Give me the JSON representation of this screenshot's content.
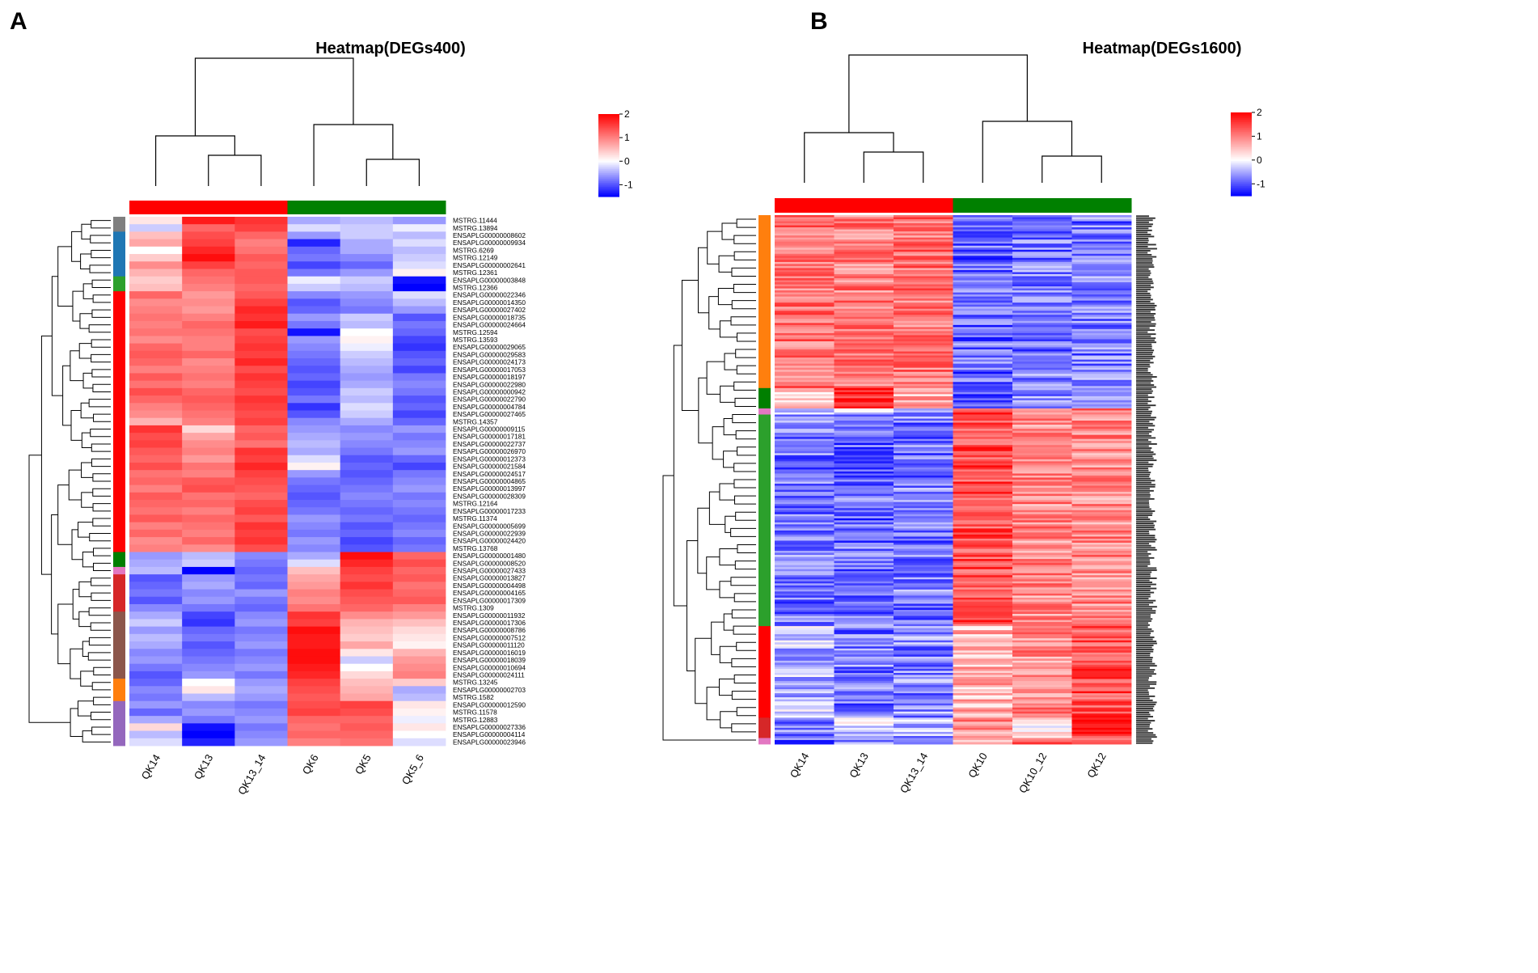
{
  "colors": {
    "high": "#ff0000",
    "mid": "#ffffff",
    "low": "#0000ff",
    "group_red": "#ff0000",
    "group_green": "#008000",
    "cluster_gray": "#7f7f7f",
    "cluster_blue": "#1f77b4",
    "cluster_green": "#2ca02c",
    "cluster_red": "#ff0000",
    "cluster_darkred": "#d62728",
    "cluster_pink": "#e377c2",
    "cluster_brown": "#8c564b",
    "cluster_orange": "#ff7f0e",
    "cluster_purple": "#9467bd",
    "cluster_darkgreen": "#007f00"
  },
  "chart_data": [
    {
      "type": "heatmap",
      "panel_label": "A",
      "title": "Heatmap(DEGs400)",
      "columns": [
        "QK14",
        "QK13",
        "QK13_14",
        "QK6",
        "QK5",
        "QK5_6"
      ],
      "column_groups": [
        "red",
        "red",
        "red",
        "green",
        "green",
        "green"
      ],
      "colorbar": {
        "ticks": [
          2,
          1,
          0,
          -1
        ],
        "range": [
          -1.5,
          2
        ]
      },
      "rows": [
        "MSTRG.11444",
        "MSTRG.13894",
        "ENSAPLG00000008602",
        "ENSAPLG00000009934",
        "MSTRG.6269",
        "MSTRG.12149",
        "ENSAPLG00000002641",
        "MSTRG.12361",
        "ENSAPLG00000003848",
        "MSTRG.12366",
        "ENSAPLG00000022346",
        "ENSAPLG00000014350",
        "ENSAPLG00000027402",
        "ENSAPLG00000018735",
        "ENSAPLG00000024664",
        "MSTRG.12594",
        "MSTRG.13593",
        "ENSAPLG00000029065",
        "ENSAPLG00000029583",
        "ENSAPLG00000024173",
        "ENSAPLG00000017053",
        "ENSAPLG00000018197",
        "ENSAPLG00000022980",
        "ENSAPLG00000000942",
        "ENSAPLG00000022790",
        "ENSAPLG00000004784",
        "ENSAPLG00000027465",
        "MSTRG.14357",
        "ENSAPLG00000009115",
        "ENSAPLG00000017181",
        "ENSAPLG00000022737",
        "ENSAPLG00000026970",
        "ENSAPLG00000012373",
        "ENSAPLG00000021584",
        "ENSAPLG00000024517",
        "ENSAPLG00000004865",
        "ENSAPLG00000013997",
        "ENSAPLG00000028309",
        "MSTRG.12164",
        "ENSAPLG00000017233",
        "MSTRG.11374",
        "ENSAPLG00000005699",
        "ENSAPLG00000022939",
        "ENSAPLG00000024420",
        "MSTRG.13768",
        "ENSAPLG00000001480",
        "ENSAPLG00000008520",
        "ENSAPLG00000027433",
        "ENSAPLG00000013827",
        "ENSAPLG00000004498",
        "ENSAPLG00000004165",
        "ENSAPLG00000017309",
        "MSTRG.1309",
        "ENSAPLG00000011932",
        "ENSAPLG00000017306",
        "ENSAPLG00000008786",
        "ENSAPLG00000007512",
        "ENSAPLG00000011120",
        "ENSAPLG00000016019",
        "ENSAPLG00000018039",
        "ENSAPLG00000010694",
        "ENSAPLG00000024111",
        "MSTRG.13245",
        "ENSAPLG00000002703",
        "MSTRG.1582",
        "ENSAPLG00000012590",
        "MSTRG.11578",
        "MSTRG.12883",
        "ENSAPLG00000027336",
        "ENSAPLG00000004114",
        "ENSAPLG00000023946"
      ],
      "row_cluster_segments": [
        {
          "color": "cluster_gray",
          "rows": 2
        },
        {
          "color": "cluster_blue",
          "rows": 6
        },
        {
          "color": "cluster_green",
          "rows": 2
        },
        {
          "color": "cluster_red",
          "rows": 35
        },
        {
          "color": "cluster_darkgreen",
          "rows": 2
        },
        {
          "color": "cluster_pink",
          "rows": 1
        },
        {
          "color": "cluster_darkred",
          "rows": 5
        },
        {
          "color": "cluster_brown",
          "rows": 9
        },
        {
          "color": "cluster_orange",
          "rows": 3
        },
        {
          "color": "cluster_purple",
          "rows": 6
        }
      ],
      "values": [
        [
          0.2,
          1.8,
          1.6,
          -0.5,
          -0.4,
          -0.6
        ],
        [
          -0.3,
          1.2,
          1.5,
          -0.2,
          -0.3,
          -0.1
        ],
        [
          0.5,
          1.4,
          1.2,
          -0.6,
          -0.3,
          -0.4
        ],
        [
          0.7,
          1.5,
          1.0,
          -1.3,
          -0.5,
          -0.2
        ],
        [
          0.0,
          1.7,
          1.1,
          -0.9,
          -0.5,
          -0.4
        ],
        [
          0.4,
          1.9,
          1.3,
          -0.8,
          -0.7,
          -0.3
        ],
        [
          0.9,
          1.5,
          1.2,
          -1.1,
          -0.9,
          -0.2
        ],
        [
          0.6,
          1.2,
          1.3,
          -0.8,
          -0.6,
          0.1
        ],
        [
          0.4,
          1.1,
          1.3,
          -0.1,
          -0.3,
          -1.4
        ],
        [
          0.5,
          1.0,
          1.2,
          -0.3,
          -0.4,
          -1.5
        ],
        [
          1.2,
          0.8,
          1.3,
          -0.7,
          -0.6,
          -0.2
        ],
        [
          0.9,
          0.9,
          1.5,
          -1.0,
          -0.7,
          -0.4
        ],
        [
          1.0,
          0.8,
          1.7,
          -0.9,
          -0.8,
          -0.6
        ],
        [
          1.1,
          1.0,
          1.6,
          -0.6,
          -0.3,
          -1.0
        ],
        [
          1.0,
          1.2,
          1.8,
          -0.8,
          -0.4,
          -0.8
        ],
        [
          1.1,
          1.1,
          1.4,
          -1.4,
          0.0,
          -0.9
        ],
        [
          0.9,
          1.0,
          1.5,
          -0.6,
          0.1,
          -1.1
        ],
        [
          1.2,
          1.0,
          1.6,
          -0.7,
          -0.1,
          -1.2
        ],
        [
          1.3,
          1.2,
          1.5,
          -0.8,
          -0.3,
          -1.0
        ],
        [
          1.2,
          0.9,
          1.7,
          -0.9,
          -0.4,
          -0.9
        ],
        [
          1.0,
          1.0,
          1.4,
          -1.0,
          -0.5,
          -1.1
        ],
        [
          1.3,
          1.1,
          1.6,
          -0.9,
          -0.6,
          -0.8
        ],
        [
          1.1,
          1.0,
          1.5,
          -1.1,
          -0.5,
          -0.7
        ],
        [
          1.4,
          1.2,
          1.4,
          -1.0,
          -0.3,
          -0.8
        ],
        [
          1.2,
          1.3,
          1.6,
          -0.8,
          -0.4,
          -1.0
        ],
        [
          1.0,
          1.2,
          1.5,
          -1.2,
          -0.2,
          -0.9
        ],
        [
          0.9,
          1.1,
          1.4,
          -1.0,
          -0.3,
          -1.1
        ],
        [
          0.6,
          1.0,
          1.5,
          -0.7,
          -0.5,
          -0.9
        ],
        [
          1.6,
          0.3,
          1.2,
          -0.6,
          -0.7,
          -0.6
        ],
        [
          1.4,
          0.7,
          1.3,
          -0.5,
          -0.6,
          -0.8
        ],
        [
          1.5,
          0.9,
          1.1,
          -0.4,
          -0.7,
          -0.7
        ],
        [
          1.3,
          1.0,
          1.6,
          -0.5,
          -0.8,
          -0.6
        ],
        [
          1.2,
          0.8,
          1.5,
          -0.2,
          -1.0,
          -0.9
        ],
        [
          1.4,
          1.1,
          1.7,
          0.1,
          -0.9,
          -1.1
        ],
        [
          1.1,
          1.0,
          1.5,
          -0.6,
          -1.0,
          -0.8
        ],
        [
          1.2,
          1.3,
          1.4,
          -0.8,
          -0.9,
          -0.7
        ],
        [
          1.0,
          1.4,
          1.3,
          -0.9,
          -0.8,
          -0.6
        ],
        [
          1.3,
          1.1,
          1.2,
          -1.0,
          -0.7,
          -0.8
        ],
        [
          1.2,
          1.2,
          1.4,
          -0.9,
          -0.8,
          -0.7
        ],
        [
          1.1,
          1.0,
          1.5,
          -0.8,
          -0.9,
          -0.8
        ],
        [
          1.3,
          1.2,
          1.3,
          -0.6,
          -0.8,
          -0.9
        ],
        [
          1.0,
          1.1,
          1.6,
          -0.7,
          -1.0,
          -0.8
        ],
        [
          1.2,
          1.0,
          1.5,
          -0.8,
          -0.9,
          -0.7
        ],
        [
          0.9,
          1.2,
          1.6,
          -0.6,
          -1.1,
          -0.9
        ],
        [
          1.0,
          0.9,
          1.4,
          -0.7,
          -1.0,
          -0.8
        ],
        [
          -0.6,
          -0.4,
          -0.7,
          -0.5,
          1.9,
          1.2
        ],
        [
          -0.5,
          -0.3,
          -0.8,
          -0.2,
          1.7,
          1.4
        ],
        [
          -0.4,
          -1.5,
          -0.9,
          0.5,
          1.5,
          1.2
        ],
        [
          -1.0,
          -0.6,
          -0.8,
          0.7,
          1.4,
          1.3
        ],
        [
          -0.9,
          -0.5,
          -0.9,
          0.8,
          1.6,
          1.1
        ],
        [
          -0.8,
          -0.7,
          -0.6,
          1.0,
          1.4,
          1.2
        ],
        [
          -1.0,
          -0.6,
          -0.8,
          0.9,
          1.3,
          1.3
        ],
        [
          -0.7,
          -0.8,
          -0.9,
          1.1,
          1.2,
          1.0
        ],
        [
          -0.5,
          -1.1,
          -0.7,
          1.6,
          0.9,
          0.8
        ],
        [
          -0.3,
          -1.2,
          -0.6,
          1.5,
          0.6,
          0.5
        ],
        [
          -0.6,
          -0.9,
          -0.8,
          1.9,
          0.5,
          0.3
        ],
        [
          -0.4,
          -0.8,
          -0.7,
          1.8,
          0.4,
          0.2
        ],
        [
          -0.5,
          -1.0,
          -0.6,
          1.8,
          0.7,
          0.1
        ],
        [
          -0.7,
          -0.9,
          -0.8,
          1.9,
          0.2,
          0.6
        ],
        [
          -0.6,
          -0.8,
          -0.7,
          1.9,
          -0.3,
          0.8
        ],
        [
          -0.8,
          -0.7,
          -0.6,
          1.8,
          0.0,
          0.9
        ],
        [
          -1.0,
          -0.6,
          -0.8,
          1.7,
          0.3,
          1.0
        ],
        [
          -0.9,
          0.0,
          -0.6,
          1.5,
          0.5,
          0.4
        ],
        [
          -0.7,
          0.2,
          -0.5,
          1.4,
          0.6,
          -0.5
        ],
        [
          -0.8,
          -0.4,
          -0.6,
          1.3,
          0.7,
          -0.4
        ],
        [
          -0.6,
          -0.7,
          -0.8,
          1.4,
          1.5,
          0.2
        ],
        [
          -0.9,
          -0.6,
          -0.7,
          1.5,
          1.4,
          0.1
        ],
        [
          -0.5,
          -0.8,
          -0.6,
          1.2,
          1.2,
          -0.1
        ],
        [
          0.3,
          -1.4,
          -0.8,
          1.1,
          1.3,
          0.2
        ],
        [
          -0.4,
          -1.5,
          -0.7,
          1.2,
          1.2,
          0.0
        ],
        [
          -0.2,
          -1.3,
          -0.6,
          1.0,
          1.1,
          -0.2
        ]
      ]
    },
    {
      "type": "heatmap",
      "panel_label": "B",
      "title": "Heatmap(DEGs1600)",
      "columns": [
        "QK14",
        "QK13",
        "QK13_14",
        "QK10",
        "QK10_12",
        "QK12"
      ],
      "column_groups": [
        "red",
        "red",
        "red",
        "green",
        "green",
        "green"
      ],
      "colorbar": {
        "ticks": [
          2,
          1,
          0,
          -1
        ],
        "range": [
          -1.5,
          2
        ]
      },
      "row_count": 260,
      "row_cluster_segments": [
        {
          "color": "cluster_orange",
          "rows": 85,
          "pattern": [
            1.1,
            1.0,
            1.1,
            -0.9,
            -0.8,
            -0.8
          ]
        },
        {
          "color": "cluster_darkgreen",
          "rows": 10,
          "pattern": [
            0.3,
            1.6,
            0.6,
            -0.9,
            -0.6,
            -0.7
          ]
        },
        {
          "color": "cluster_pink",
          "rows": 3,
          "pattern": [
            -0.6,
            -0.4,
            -0.7,
            1.5,
            1.0,
            1.0
          ]
        },
        {
          "color": "cluster_green",
          "rows": 104,
          "pattern": [
            -0.8,
            -0.9,
            -0.8,
            1.4,
            0.9,
            0.9
          ]
        },
        {
          "color": "cluster_red",
          "rows": 45,
          "pattern": [
            -0.4,
            -0.8,
            -0.7,
            0.6,
            0.9,
            1.4
          ]
        },
        {
          "color": "cluster_darkred",
          "rows": 10,
          "pattern": [
            -0.7,
            -0.3,
            -0.5,
            0.9,
            0.2,
            1.6
          ]
        },
        {
          "color": "cluster_pink",
          "rows": 3,
          "pattern": [
            -0.9,
            -0.6,
            -0.8,
            0.5,
            1.2,
            1.1
          ]
        }
      ]
    }
  ]
}
